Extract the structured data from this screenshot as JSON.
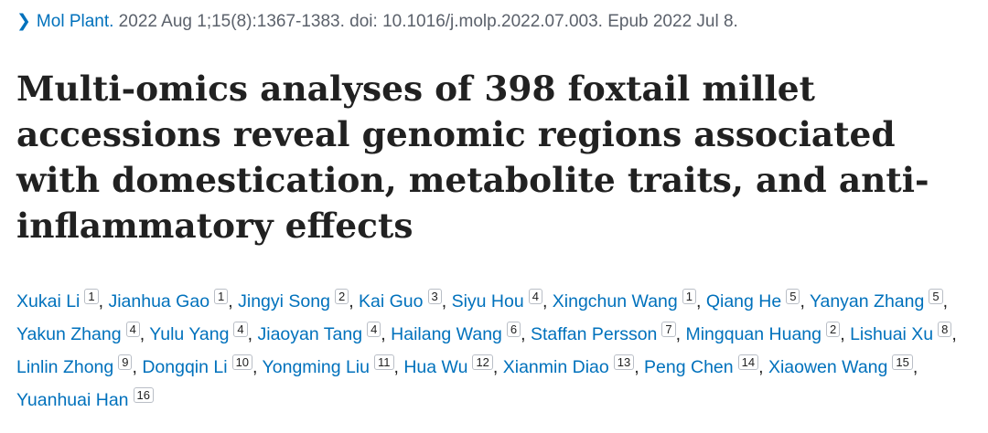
{
  "citation": {
    "journal": "Mol Plant.",
    "details": " 2022 Aug 1;15(8):1367-1383. doi: 10.1016/j.molp.2022.07.003. Epub 2022 Jul 8.",
    "chevron_icon": "chevron-right-icon"
  },
  "title": "Multi-omics analyses of 398 foxtail millet accessions reveal genomic regions associated with domestication, metabolite traits, and anti-inflammatory effects",
  "authors": [
    {
      "name": "Xukai Li",
      "aff": "1"
    },
    {
      "name": "Jianhua Gao",
      "aff": "1"
    },
    {
      "name": "Jingyi Song",
      "aff": "2"
    },
    {
      "name": "Kai Guo",
      "aff": "3"
    },
    {
      "name": "Siyu Hou",
      "aff": "4"
    },
    {
      "name": "Xingchun Wang",
      "aff": "1"
    },
    {
      "name": "Qiang He",
      "aff": "5"
    },
    {
      "name": "Yanyan Zhang",
      "aff": "5"
    },
    {
      "name": "Yakun Zhang",
      "aff": "4"
    },
    {
      "name": "Yulu Yang",
      "aff": "4"
    },
    {
      "name": "Jiaoyan Tang",
      "aff": "4"
    },
    {
      "name": "Hailang Wang",
      "aff": "6"
    },
    {
      "name": "Staffan Persson",
      "aff": "7"
    },
    {
      "name": "Mingquan Huang",
      "aff": "2"
    },
    {
      "name": "Lishuai Xu",
      "aff": "8"
    },
    {
      "name": "Linlin Zhong",
      "aff": "9"
    },
    {
      "name": "Dongqin Li",
      "aff": "10"
    },
    {
      "name": "Yongming Liu",
      "aff": "11"
    },
    {
      "name": "Hua Wu",
      "aff": "12"
    },
    {
      "name": "Xianmin Diao",
      "aff": "13"
    },
    {
      "name": "Peng Chen",
      "aff": "14"
    },
    {
      "name": "Xiaowen Wang",
      "aff": "15"
    },
    {
      "name": "Yuanhuai Han",
      "aff": "16"
    }
  ],
  "separator": ", ",
  "colors": {
    "link": "#0071bc",
    "text": "#212121",
    "muted": "#5b616b"
  }
}
